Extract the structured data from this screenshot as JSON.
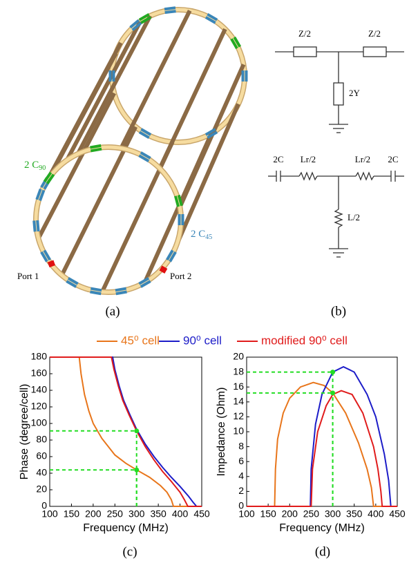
{
  "chart_data": [
    {
      "type": "line",
      "xlabel": "Frequency (MHz)",
      "ylabel": "Phase (degree/cell)",
      "xlim": [
        100,
        450
      ],
      "xticks": [
        100,
        150,
        200,
        250,
        300,
        350,
        400,
        450
      ],
      "ylim": [
        0,
        180
      ],
      "yticks": [
        0,
        20,
        40,
        60,
        80,
        100,
        120,
        140,
        160,
        180
      ],
      "series": [
        {
          "name": "45⁰ cell",
          "color": "#e8751a",
          "x": [
            100,
            168,
            172,
            180,
            190,
            200,
            220,
            250,
            275,
            300,
            330,
            355,
            370,
            380,
            385,
            450
          ],
          "values": [
            180,
            180,
            160,
            135,
            115,
            100,
            82,
            62,
            52,
            44,
            35,
            25,
            17,
            8,
            0,
            0
          ]
        },
        {
          "name": "90⁰ cell",
          "color": "#1c1cc8",
          "x": [
            100,
            245,
            250,
            260,
            270,
            285,
            300,
            320,
            340,
            360,
            380,
            400,
            420,
            430,
            438,
            450
          ],
          "values": [
            180,
            180,
            165,
            145,
            128,
            110,
            93,
            75,
            60,
            47,
            35,
            24,
            12,
            5,
            0,
            0
          ]
        },
        {
          "name": "modified 90⁰ cell",
          "color": "#e01b1b",
          "x": [
            100,
            242,
            248,
            258,
            268,
            283,
            300,
            320,
            340,
            360,
            380,
            400,
            410,
            418,
            450
          ],
          "values": [
            180,
            180,
            165,
            145,
            128,
            110,
            91,
            72,
            56,
            42,
            30,
            17,
            8,
            0,
            0
          ]
        }
      ],
      "guides": {
        "color": "#22dd22",
        "points": [
          {
            "x": 300,
            "y": 91
          },
          {
            "x": 300,
            "y": 44
          }
        ]
      }
    },
    {
      "type": "line",
      "xlabel": "Frequency (MHz)",
      "ylabel": "Impedance (Ohm)",
      "xlim": [
        100,
        450
      ],
      "xticks": [
        100,
        150,
        200,
        250,
        300,
        350,
        400,
        450
      ],
      "ylim": [
        0,
        20
      ],
      "yticks": [
        0,
        2,
        4,
        6,
        8,
        10,
        12,
        14,
        16,
        18,
        20
      ],
      "series": [
        {
          "color": "#e8751a",
          "x": [
            100,
            165,
            167,
            172,
            185,
            200,
            225,
            255,
            280,
            300,
            330,
            360,
            380,
            390,
            395,
            450
          ],
          "values": [
            0,
            0,
            5,
            9,
            12.5,
            14.5,
            16,
            16.6,
            16.2,
            15.2,
            12.5,
            8.5,
            5,
            2.5,
            0,
            0
          ]
        },
        {
          "color": "#1c1cc8",
          "x": [
            100,
            248,
            250,
            260,
            275,
            300,
            325,
            350,
            380,
            400,
            420,
            430,
            435,
            450
          ],
          "values": [
            0,
            0,
            5,
            11,
            15,
            18,
            18.7,
            18,
            15,
            12,
            7,
            3.5,
            0,
            0
          ]
        },
        {
          "color": "#e01b1b",
          "x": [
            100,
            250,
            253,
            265,
            285,
            300,
            320,
            345,
            370,
            395,
            405,
            412,
            415,
            450
          ],
          "values": [
            0,
            0,
            5,
            10,
            13.5,
            15,
            15.5,
            15,
            12.5,
            8,
            5,
            2,
            0,
            0
          ]
        }
      ],
      "guides": {
        "color": "#22dd22",
        "points": [
          {
            "x": 300,
            "y": 18
          },
          {
            "x": 300,
            "y": 15.2
          }
        ]
      }
    }
  ],
  "figure": {
    "panel_labels": [
      "(a)",
      "(b)",
      "(c)",
      "(d)"
    ],
    "c90": {
      "text": "2 C",
      "sub": "90"
    },
    "c45": {
      "text": "2 C",
      "sub": "45"
    },
    "ports": [
      "Port 1",
      "Port 2"
    ],
    "t_network": [
      "Z/2",
      "Z/2",
      "2Y"
    ],
    "ladder": [
      "2C",
      "Lr/2",
      "Lr/2",
      "2C",
      "L/2"
    ]
  }
}
